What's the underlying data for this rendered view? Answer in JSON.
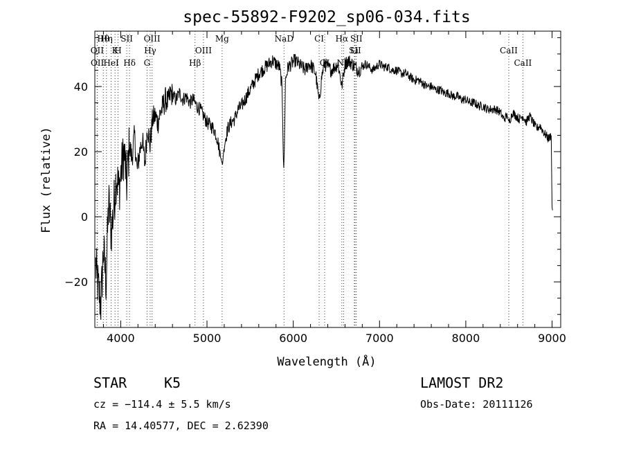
{
  "chart_data": {
    "type": "line",
    "title": "spec-55892-F9202_sp06-034.fits",
    "xlabel": "Wavelength (Å)",
    "ylabel": "Flux (relative)",
    "xlim": [
      3700,
      9100
    ],
    "ylim": [
      -34,
      57
    ],
    "xticks": [
      4000,
      5000,
      6000,
      7000,
      8000,
      9000
    ],
    "yticks": [
      -20,
      0,
      20,
      40
    ],
    "xtick_labels": [
      "4000",
      "5000",
      "6000",
      "7000",
      "8000",
      "9000"
    ],
    "ytick_labels": [
      "−20",
      "0",
      "20",
      "40"
    ],
    "series": [
      {
        "color": "#000000",
        "x": [
          3710,
          3740,
          3770,
          3800,
          3830,
          3860,
          3890,
          3920,
          3950,
          3980,
          4010,
          4040,
          4070,
          4100,
          4130,
          4160,
          4190,
          4220,
          4250,
          4280,
          4310,
          4340,
          4370,
          4400,
          4430,
          4460,
          4490,
          4520,
          4550,
          4580,
          4610,
          4640,
          4680,
          4720,
          4760,
          4800,
          4840,
          4880,
          4920,
          4960,
          5000,
          5040,
          5080,
          5120,
          5160,
          5180,
          5200,
          5240,
          5280,
          5320,
          5360,
          5400,
          5440,
          5480,
          5520,
          5560,
          5600,
          5640,
          5680,
          5720,
          5760,
          5800,
          5840,
          5870,
          5885,
          5890,
          5896,
          5910,
          5940,
          5980,
          6020,
          6060,
          6100,
          6140,
          6180,
          6220,
          6260,
          6300,
          6330,
          6360,
          6400,
          6440,
          6480,
          6520,
          6563,
          6600,
          6640,
          6680,
          6720,
          6760,
          6800,
          6840,
          6880,
          6920,
          6960,
          7000,
          7050,
          7100,
          7150,
          7200,
          7250,
          7300,
          7350,
          7400,
          7450,
          7500,
          7550,
          7600,
          7650,
          7700,
          7750,
          7800,
          7850,
          7900,
          7950,
          8000,
          8050,
          8100,
          8150,
          8200,
          8250,
          8300,
          8350,
          8400,
          8440,
          8480,
          8500,
          8542,
          8580,
          8620,
          8662,
          8700,
          8740,
          8780,
          8820,
          8860,
          8900,
          8930,
          8960,
          8990,
          9000,
          9005
        ],
        "y": [
          -15,
          -22,
          -27,
          -10,
          -20,
          5,
          -5,
          3,
          13,
          8,
          15,
          20,
          10,
          22,
          18,
          25,
          14,
          20,
          24,
          16,
          28,
          22,
          30,
          31,
          29,
          32,
          34,
          36,
          35,
          38,
          37,
          36,
          38,
          36,
          37,
          35,
          36,
          34,
          33,
          31,
          29,
          28,
          27,
          24,
          18,
          16,
          22,
          27,
          29,
          30,
          33,
          34,
          36,
          38,
          40,
          42,
          44,
          45,
          46,
          47,
          48,
          47,
          46,
          40,
          18,
          15,
          20,
          42,
          46,
          47,
          48,
          47,
          46,
          45,
          47,
          46,
          44,
          35,
          43,
          47,
          46,
          45,
          46,
          47,
          40,
          47,
          48,
          47,
          46,
          45,
          46,
          47,
          46,
          45,
          46,
          47,
          46,
          46,
          45,
          45,
          44,
          44,
          43,
          42,
          42,
          41,
          40,
          40,
          39,
          39,
          38,
          38,
          37,
          37,
          36,
          36,
          35,
          35,
          34,
          34,
          33,
          33,
          33,
          32,
          30,
          31,
          29,
          32,
          31,
          30,
          31,
          29,
          31,
          29,
          27,
          28,
          26,
          25,
          24,
          25,
          3,
          2
        ]
      }
    ],
    "grid": false,
    "legend": null,
    "line_markers": [
      {
        "label": "Hθ",
        "x": 3798
      },
      {
        "label": "K",
        "x": 3934
      },
      {
        "label": "Hδ",
        "x": 4102
      },
      {
        "label": "OIII",
        "x": 4363
      },
      {
        "label": "OII",
        "x": 3727
      },
      {
        "label": "HeI",
        "x": 3889
      },
      {
        "label": "SII",
        "x": 4070
      },
      {
        "label": "Hγ",
        "x": 4341
      },
      {
        "label": "OII",
        "x": 3729
      },
      {
        "label": "Hη",
        "x": 3835
      },
      {
        "label": "H",
        "x": 3969
      },
      {
        "label": "G",
        "x": 4305
      },
      {
        "label": "Mg",
        "x": 5175
      },
      {
        "label": "OIII",
        "x": 4959
      },
      {
        "label": "Hβ",
        "x": 4861
      },
      {
        "label": "CI",
        "x": 6300
      },
      {
        "label": "Li",
        "x": 6708
      },
      {
        "label": "OI",
        "x": 6364
      },
      {
        "label": "Hα",
        "x": 6563
      },
      {
        "label": "SII",
        "x": 6716
      },
      {
        "label": "NII",
        "x": 6584
      },
      {
        "label": "SII",
        "x": 6731
      },
      {
        "label": "CaII",
        "x": 8498
      },
      {
        "label": "CaII",
        "x": 8662
      },
      {
        "label": "NaD",
        "x": 5893
      }
    ]
  },
  "info": {
    "class_label": "STAR",
    "subclass": "K5",
    "survey": "LAMOST DR2",
    "cz": "cz = −114.4 ± 5.5 km/s",
    "obs_date": "Obs-Date: 20111126",
    "coords": "RA =  14.40577, DEC =   2.62390"
  }
}
